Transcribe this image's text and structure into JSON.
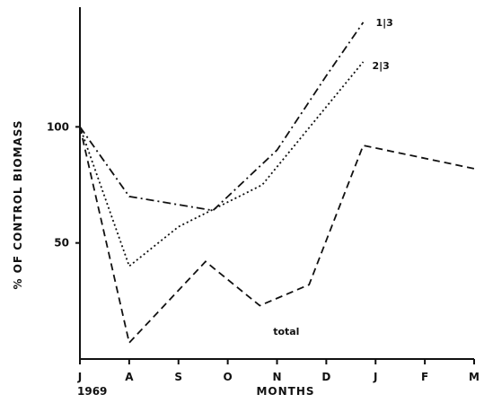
{
  "chart_data": {
    "type": "line",
    "xlabel": "MONTHS",
    "ylabel": "% OF CONTROL BIOMASS",
    "x_ticks": [
      "J",
      "A",
      "S",
      "O",
      "N",
      "D",
      "J",
      "F",
      "M"
    ],
    "x_tick_year": "1969",
    "y_ticks": [
      50,
      100
    ],
    "xlim": [
      0,
      8
    ],
    "ylim": [
      0,
      150
    ],
    "grid": false,
    "colors": {
      "line": "#111111",
      "text": "#111111"
    },
    "series": [
      {
        "name": "1|3",
        "style": "dash-dot",
        "points": [
          [
            0,
            100
          ],
          [
            1,
            70
          ],
          [
            2.7,
            64
          ],
          [
            4,
            90
          ],
          [
            5,
            122
          ],
          [
            5.75,
            145
          ]
        ]
      },
      {
        "name": "2|3",
        "style": "dotted",
        "points": [
          [
            0,
            100
          ],
          [
            1,
            40
          ],
          [
            2,
            57
          ],
          [
            3.7,
            75
          ],
          [
            5.75,
            128
          ]
        ]
      },
      {
        "name": "total",
        "style": "dashed",
        "points": [
          [
            0,
            100
          ],
          [
            1,
            7
          ],
          [
            2.55,
            42
          ],
          [
            3.65,
            23
          ],
          [
            4.65,
            32
          ],
          [
            5.75,
            92
          ],
          [
            8,
            82
          ]
        ]
      }
    ]
  }
}
